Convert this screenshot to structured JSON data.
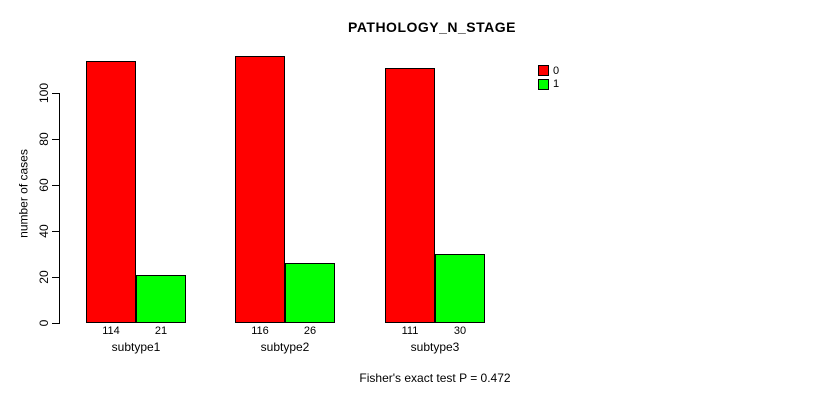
{
  "title": "PATHOLOGY_N_STAGE",
  "y_axis": {
    "label": "number of cases",
    "ticks": [
      0,
      20,
      40,
      60,
      80,
      100
    ]
  },
  "footer": "Fisher's exact test P = 0.472",
  "legend": {
    "items": [
      {
        "label": "0",
        "color": "#FF0000"
      },
      {
        "label": "1",
        "color": "#00FF00"
      }
    ]
  },
  "chart_data": {
    "type": "bar",
    "title": "PATHOLOGY_N_STAGE",
    "xlabel": "",
    "ylabel": "number of cases",
    "categories": [
      "subtype1",
      "subtype2",
      "subtype3"
    ],
    "series": [
      {
        "name": "0",
        "color": "#FF0000",
        "values": [
          114,
          116,
          111
        ]
      },
      {
        "name": "1",
        "color": "#00FF00",
        "values": [
          21,
          26,
          30
        ]
      }
    ],
    "value_labels_shown": true,
    "yticks": [
      0,
      20,
      40,
      60,
      80,
      100
    ],
    "ylim": [
      0,
      116
    ],
    "grid": false,
    "legend_position": "top-right",
    "annotation": "Fisher's exact test P = 0.472"
  }
}
